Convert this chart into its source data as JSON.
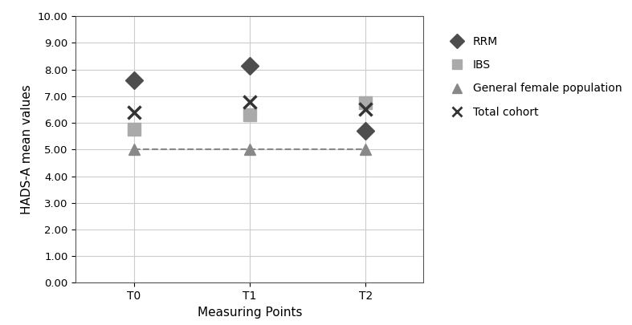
{
  "x_labels": [
    "T0",
    "T1",
    "T2"
  ],
  "x_positions": [
    0,
    1,
    2
  ],
  "rrm": [
    7.6,
    8.15,
    5.7
  ],
  "ibs": [
    5.75,
    6.3,
    6.75
  ],
  "general_female": [
    5.0,
    5.0,
    5.0
  ],
  "total_cohort": [
    6.4,
    6.8,
    6.5
  ],
  "rrm_color": "#4d4d4d",
  "ibs_color": "#aaaaaa",
  "general_color": "#888888",
  "total_color": "#333333",
  "ylim": [
    0.0,
    10.0
  ],
  "yticks": [
    0.0,
    1.0,
    2.0,
    3.0,
    4.0,
    5.0,
    6.0,
    7.0,
    8.0,
    9.0,
    10.0
  ],
  "ylabel": "HADS-A mean values",
  "xlabel": "Measuring Points",
  "legend_labels": [
    "RRM",
    "IBS",
    "General female population",
    "Total cohort"
  ],
  "background_color": "#ffffff",
  "grid_color": "#cccccc"
}
